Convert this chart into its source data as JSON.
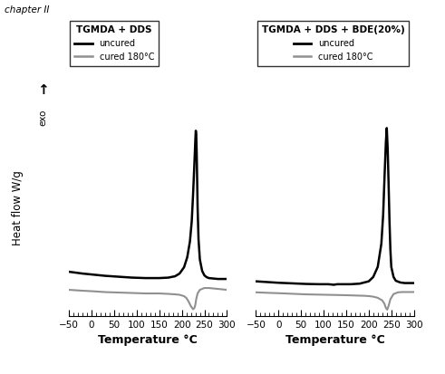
{
  "title_text": "chapter II",
  "xlabel": "Temperature °C",
  "ylabel": "Heat flow W/g",
  "exo_label": "exo",
  "xlim": [
    -50,
    300
  ],
  "xticks": [
    -50,
    0,
    50,
    100,
    150,
    200,
    250,
    300
  ],
  "background_color": "#ffffff",
  "left_legend_title": "TGMDA + DDS",
  "right_legend_title": "TGMDA + DDS + BDE(20%)",
  "legend_uncured": "uncured",
  "legend_cured": "cured 180°C",
  "uncured_color": "#000000",
  "cured_color": "#909090",
  "left_uncured_x": [
    -50,
    -20,
    0,
    30,
    60,
    90,
    120,
    150,
    170,
    185,
    195,
    205,
    212,
    218,
    222,
    225,
    228,
    230,
    231,
    232,
    233,
    234,
    235,
    237,
    240,
    245,
    250,
    255,
    260,
    270,
    280,
    290,
    300
  ],
  "left_uncured_y": [
    0.18,
    0.14,
    0.12,
    0.09,
    0.07,
    0.05,
    0.04,
    0.04,
    0.05,
    0.08,
    0.14,
    0.28,
    0.5,
    0.85,
    1.3,
    1.9,
    2.6,
    3.1,
    3.3,
    3.2,
    2.8,
    2.2,
    1.6,
    0.9,
    0.45,
    0.2,
    0.1,
    0.06,
    0.04,
    0.03,
    0.02,
    0.02,
    0.02
  ],
  "left_cured_x": [
    -50,
    -20,
    0,
    30,
    60,
    90,
    120,
    150,
    170,
    185,
    195,
    205,
    210,
    215,
    220,
    225,
    228,
    230,
    232,
    235,
    240,
    250,
    260,
    270,
    280,
    290,
    300
  ],
  "left_cured_y": [
    -0.22,
    -0.24,
    -0.25,
    -0.27,
    -0.28,
    -0.29,
    -0.3,
    -0.3,
    -0.31,
    -0.32,
    -0.33,
    -0.36,
    -0.4,
    -0.48,
    -0.58,
    -0.65,
    -0.62,
    -0.55,
    -0.42,
    -0.3,
    -0.22,
    -0.18,
    -0.18,
    -0.19,
    -0.2,
    -0.21,
    -0.22
  ],
  "right_uncured_x": [
    -50,
    -20,
    0,
    30,
    60,
    90,
    110,
    118,
    122,
    126,
    130,
    140,
    160,
    180,
    200,
    210,
    220,
    228,
    232,
    235,
    238,
    240,
    242,
    244,
    246,
    248,
    250,
    255,
    260,
    270,
    280,
    290,
    300
  ],
  "right_uncured_y": [
    0.2,
    0.17,
    0.15,
    0.13,
    0.11,
    0.1,
    0.1,
    0.09,
    0.08,
    0.09,
    0.1,
    0.1,
    0.1,
    0.12,
    0.2,
    0.35,
    0.7,
    1.5,
    2.5,
    3.8,
    5.0,
    5.5,
    4.8,
    3.6,
    2.3,
    1.3,
    0.7,
    0.35,
    0.22,
    0.16,
    0.14,
    0.14,
    0.14
  ],
  "right_cured_x": [
    -50,
    -20,
    0,
    30,
    60,
    90,
    120,
    150,
    170,
    190,
    200,
    210,
    220,
    230,
    235,
    238,
    241,
    244,
    248,
    255,
    265,
    275,
    285,
    295,
    300
  ],
  "right_cured_y": [
    -0.18,
    -0.2,
    -0.21,
    -0.23,
    -0.25,
    -0.26,
    -0.27,
    -0.28,
    -0.29,
    -0.3,
    -0.31,
    -0.33,
    -0.37,
    -0.46,
    -0.58,
    -0.72,
    -0.78,
    -0.65,
    -0.42,
    -0.24,
    -0.18,
    -0.17,
    -0.17,
    -0.17,
    -0.17
  ]
}
